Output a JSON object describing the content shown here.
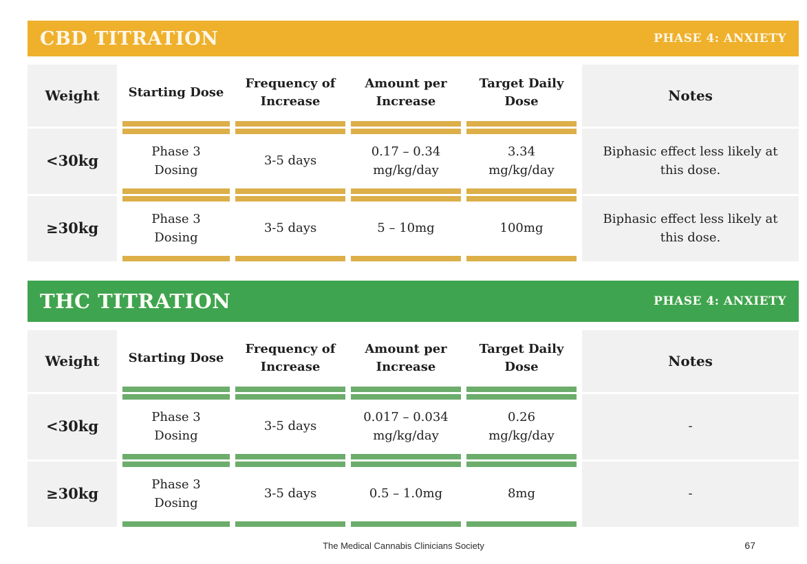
{
  "colors": {
    "cbd_band": "#EFB02C",
    "cbd_bar": "#DCAF49",
    "thc_band": "#3FA44F",
    "thc_bar": "#6CAD6B",
    "cell_gray": "#F1F1F1"
  },
  "tables": [
    {
      "title": "CBD TITRATION",
      "phase_label": "PHASE 4: ANXIETY",
      "columns": [
        "Weight",
        "Starting Dose",
        "Frequency of\nIncrease",
        "Amount per\nIncrease",
        "Target Daily\nDose",
        "Notes"
      ],
      "rows": [
        {
          "weight": "<30kg",
          "starting_dose": "Phase 3\nDosing",
          "frequency": "3-5 days",
          "amount": "0.17 – 0.34\nmg/kg/day",
          "target": "3.34\nmg/kg/day",
          "notes": "Biphasic effect less likely at\nthis dose."
        },
        {
          "weight": "≥30kg",
          "starting_dose": "Phase 3\nDosing",
          "frequency": "3-5 days",
          "amount": "5 – 10mg",
          "target": "100mg",
          "notes": "Biphasic effect less likely at\nthis dose."
        }
      ]
    },
    {
      "title": "THC TITRATION",
      "phase_label": "PHASE 4: ANXIETY",
      "columns": [
        "Weight",
        "Starting Dose",
        "Frequency of\nIncrease",
        "Amount per\nIncrease",
        "Target Daily\nDose",
        "Notes"
      ],
      "rows": [
        {
          "weight": "<30kg",
          "starting_dose": "Phase 3\nDosing",
          "frequency": "3-5 days",
          "amount": "0.017 – 0.034\nmg/kg/day",
          "target": "0.26\nmg/kg/day",
          "notes": "-"
        },
        {
          "weight": "≥30kg",
          "starting_dose": "Phase 3\nDosing",
          "frequency": "3-5 days",
          "amount": "0.5 – 1.0mg",
          "target": "8mg",
          "notes": "-"
        }
      ]
    }
  ],
  "footer": {
    "society": "The Medical Cannabis Clinicians Society",
    "page_number": "67"
  }
}
